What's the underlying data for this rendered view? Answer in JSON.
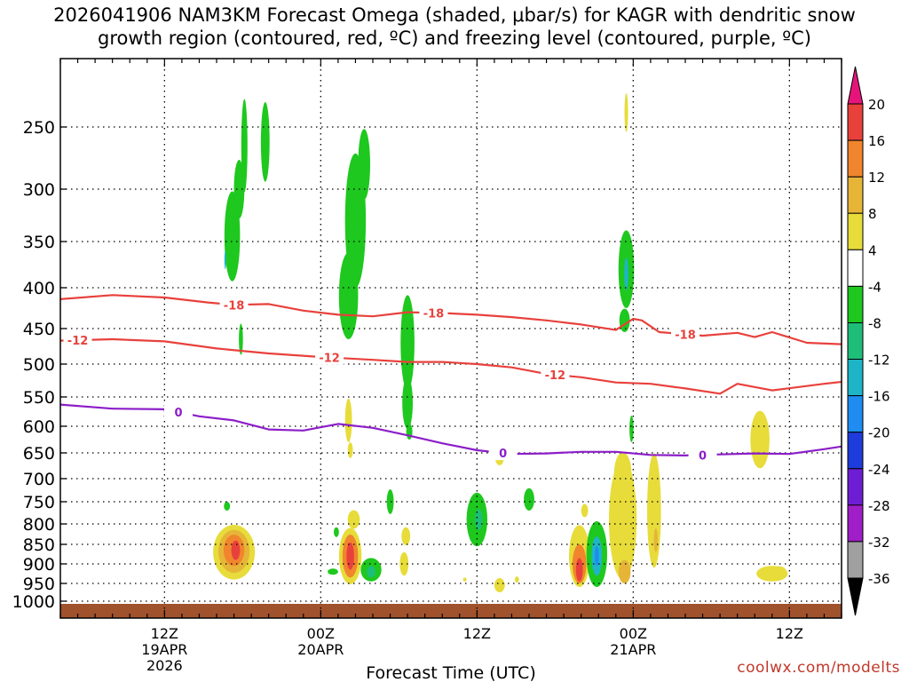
{
  "title": {
    "line1": "2026041906 NAM3KM Forecast Omega (shaded, μbar/s) for KAGR with dendritic snow",
    "line2": "growth region (contoured, red, ºC) and freezing level (contoured, purple, ºC)"
  },
  "credit": "coolwx.com/modelts",
  "chart_data": {
    "type": "heatmap",
    "xlabel": "Forecast Time (UTC)",
    "x_range_hours": [
      -6,
      39
    ],
    "x_ticks": [
      {
        "hour": 0,
        "lines": [
          "12Z",
          "19APR",
          "2026"
        ]
      },
      {
        "hour": 9,
        "lines": [
          "00Z",
          "20APR"
        ]
      },
      {
        "hour": 18,
        "lines": [
          "12Z"
        ]
      },
      {
        "hour": 27,
        "lines": [
          "00Z",
          "21APR"
        ]
      },
      {
        "hour": 36,
        "lines": [
          "12Z"
        ]
      }
    ],
    "y_ticks_mb": [
      250,
      300,
      350,
      400,
      450,
      500,
      550,
      600,
      650,
      700,
      750,
      800,
      850,
      900,
      950,
      1000
    ],
    "y_axis_reversed": true,
    "grid": true,
    "colorbar": {
      "labels": [
        "20",
        "16",
        "12",
        "8",
        "4",
        "-4",
        "-8",
        "-12",
        "-16",
        "-20",
        "-24",
        "-28",
        "-32",
        "-36"
      ],
      "bands": [
        {
          "from": 20,
          "to": 16,
          "color": "#e8413c"
        },
        {
          "from": 16,
          "to": 12,
          "color": "#f0852d"
        },
        {
          "from": 12,
          "to": 8,
          "color": "#e6b538"
        },
        {
          "from": 8,
          "to": 4,
          "color": "#e7dc3a"
        },
        {
          "from": 4,
          "to": -4,
          "color": "#ffffff"
        },
        {
          "from": -4,
          "to": -8,
          "color": "#1ec81e"
        },
        {
          "from": -8,
          "to": -12,
          "color": "#1ebe78"
        },
        {
          "from": -12,
          "to": -16,
          "color": "#1eb4c8"
        },
        {
          "from": -16,
          "to": -20,
          "color": "#1e8cf0"
        },
        {
          "from": -20,
          "to": -24,
          "color": "#1e3cdc"
        },
        {
          "from": -24,
          "to": -28,
          "color": "#6e1ed2"
        },
        {
          "from": -28,
          "to": -32,
          "color": "#a01ec8"
        },
        {
          "from": -32,
          "to": -36,
          "color": "#a0a0a0"
        }
      ],
      "top_arrow_color": "#e6147a",
      "bottom_arrow_color": "#000000"
    },
    "contours": [
      {
        "label": "-18",
        "color": "#e8413c",
        "label_hours": [
          4,
          15.5,
          30
        ],
        "points": [
          [
            -6,
            414
          ],
          [
            -3,
            409
          ],
          [
            0,
            412
          ],
          [
            2.5,
            418
          ],
          [
            4,
            421
          ],
          [
            6,
            420
          ],
          [
            8,
            428
          ],
          [
            10,
            433
          ],
          [
            12,
            435
          ],
          [
            14,
            430
          ],
          [
            16,
            431
          ],
          [
            18,
            433
          ],
          [
            20,
            436
          ],
          [
            22,
            440
          ],
          [
            24,
            445
          ],
          [
            26,
            452
          ],
          [
            27,
            438
          ],
          [
            27.5,
            440
          ],
          [
            28.5,
            455
          ],
          [
            31,
            460
          ],
          [
            33,
            456
          ],
          [
            34,
            462
          ],
          [
            35,
            455
          ],
          [
            37,
            470
          ],
          [
            39,
            472
          ]
        ]
      },
      {
        "label": "-12",
        "color": "#e8413c",
        "label_hours": [
          -5,
          9.5,
          22.5
        ],
        "points": [
          [
            -6,
            467
          ],
          [
            -3,
            465
          ],
          [
            0,
            468
          ],
          [
            3,
            478
          ],
          [
            6,
            485
          ],
          [
            9,
            490
          ],
          [
            12,
            494
          ],
          [
            14,
            497
          ],
          [
            16,
            497
          ],
          [
            18,
            500
          ],
          [
            20,
            505
          ],
          [
            22,
            515
          ],
          [
            24,
            520
          ],
          [
            26,
            528
          ],
          [
            28,
            530
          ],
          [
            30,
            537
          ],
          [
            32,
            545
          ],
          [
            33,
            530
          ],
          [
            35,
            540
          ],
          [
            38,
            530
          ],
          [
            39,
            527
          ]
        ]
      },
      {
        "label": "0",
        "color": "#8c1ec8",
        "label_hours": [
          0.8,
          19.5,
          31
        ],
        "points": [
          [
            -6,
            563
          ],
          [
            -3,
            570
          ],
          [
            0,
            571
          ],
          [
            2,
            583
          ],
          [
            4,
            590
          ],
          [
            6,
            606
          ],
          [
            8,
            608
          ],
          [
            10,
            596
          ],
          [
            12,
            603
          ],
          [
            14,
            617
          ],
          [
            16,
            632
          ],
          [
            18,
            645
          ],
          [
            20,
            652
          ],
          [
            22,
            651
          ],
          [
            24,
            648
          ],
          [
            26,
            648
          ],
          [
            28,
            654
          ],
          [
            30,
            655
          ],
          [
            32,
            653
          ],
          [
            34,
            651
          ],
          [
            36,
            652
          ],
          [
            38,
            643
          ],
          [
            39,
            638
          ]
        ]
      }
    ],
    "omega_features_note": "shaded regions approximate"
  }
}
